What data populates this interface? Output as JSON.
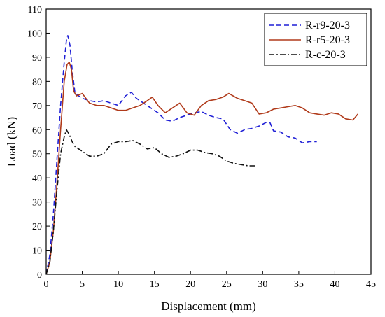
{
  "chart_data": {
    "type": "line",
    "title": "",
    "xlabel": "Displacement (mm)",
    "ylabel": "Load (kN)",
    "xlim": [
      0,
      45
    ],
    "ylim": [
      0,
      110
    ],
    "xticks": [
      0,
      5,
      10,
      15,
      20,
      25,
      30,
      35,
      40,
      45
    ],
    "yticks": [
      0,
      10,
      20,
      30,
      40,
      50,
      60,
      70,
      80,
      90,
      100,
      110
    ],
    "grid": false,
    "legend_position": "top-right",
    "series": [
      {
        "name": "R-r9-20-3",
        "color": "#1f1fd6",
        "dash": "dashed",
        "x": [
          0,
          0.5,
          1.0,
          1.5,
          2.0,
          2.5,
          2.8,
          3.0,
          3.3,
          3.6,
          4.0,
          4.5,
          5.0,
          6.0,
          7.0,
          8.0,
          9.0,
          10.0,
          11.0,
          11.8,
          12.5,
          13.5,
          14.5,
          15.5,
          16.5,
          17.5,
          18.5,
          19.5,
          20.5,
          21.5,
          22.5,
          23.5,
          24.5,
          25.5,
          26.5,
          27.5,
          28.5,
          29.5,
          30.5,
          31.0,
          31.5,
          32.5,
          33.5,
          34.5,
          35.5,
          36.5,
          37.5
        ],
        "y": [
          0,
          8,
          25,
          48,
          70,
          88,
          97,
          99,
          95,
          85,
          75,
          74,
          73,
          72,
          71.5,
          72,
          71,
          70,
          74,
          75.5,
          73,
          71,
          69,
          67,
          64,
          63.5,
          65,
          66,
          67,
          67.5,
          66,
          65,
          64.5,
          60,
          58.5,
          60,
          60.5,
          61.5,
          63,
          63,
          59.5,
          59,
          57,
          56.5,
          54.5,
          55,
          55
        ]
      },
      {
        "name": "R-r5-20-3",
        "color": "#b03a1a",
        "dash": "solid",
        "x": [
          0,
          0.5,
          1.0,
          1.5,
          2.0,
          2.5,
          2.9,
          3.2,
          3.5,
          3.8,
          4.2,
          5.0,
          6.0,
          7.0,
          8.0,
          9.0,
          10.0,
          11.0,
          12.0,
          13.0,
          14.0,
          14.7,
          15.5,
          16.5,
          17.5,
          18.5,
          19.5,
          20.5,
          21.5,
          22.5,
          23.5,
          24.5,
          25.3,
          26.5,
          27.5,
          28.5,
          29.5,
          30.5,
          31.5,
          32.5,
          33.5,
          34.5,
          35.5,
          36.5,
          37.5,
          38.5,
          39.5,
          40.5,
          41.5,
          42.5,
          43.2
        ],
        "y": [
          0,
          5,
          18,
          38,
          60,
          80,
          87,
          88,
          85,
          76,
          74,
          75,
          71,
          70,
          70,
          69,
          68,
          68,
          69,
          70,
          72,
          73.5,
          70,
          67,
          69,
          71,
          67,
          66,
          70,
          72,
          72.5,
          73.5,
          75,
          73,
          72,
          71,
          66.5,
          67,
          68.5,
          69,
          69.5,
          70,
          69,
          67,
          66.5,
          66,
          67,
          66.5,
          64.5,
          64,
          66.5
        ]
      },
      {
        "name": "R-c-20-3",
        "color": "#111111",
        "dash": "dashdot",
        "x": [
          0,
          0.5,
          1.0,
          1.5,
          2.0,
          2.5,
          2.8,
          3.2,
          3.6,
          4.0,
          4.5,
          5.0,
          6.0,
          7.0,
          8.0,
          9.0,
          10.0,
          11.0,
          12.0,
          13.0,
          14.0,
          15.0,
          16.0,
          17.0,
          18.0,
          19.0,
          20.0,
          21.0,
          22.0,
          23.0,
          24.0,
          25.0,
          26.0,
          27.0,
          28.0,
          29.0
        ],
        "y": [
          0,
          5,
          18,
          35,
          50,
          57,
          60,
          58,
          55,
          53,
          52,
          51,
          49,
          49,
          50,
          54,
          55,
          55,
          55.5,
          54,
          52,
          52.5,
          50,
          48.5,
          49,
          50,
          51.5,
          51.5,
          50.5,
          50,
          49,
          47,
          46,
          45.5,
          45,
          45
        ]
      }
    ]
  }
}
